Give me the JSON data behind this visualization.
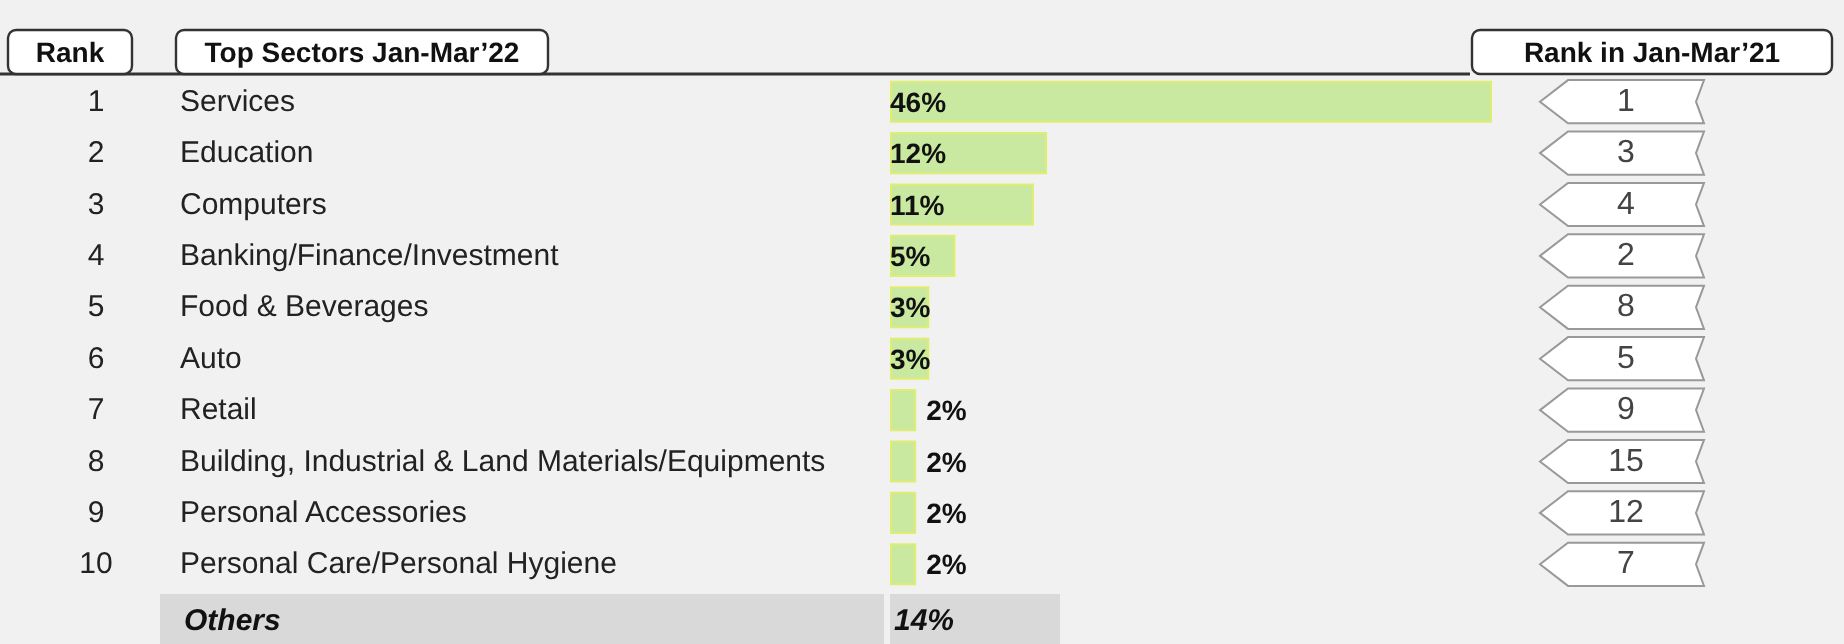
{
  "chart_data": {
    "type": "bar",
    "orientation": "horizontal",
    "categories": [
      "Services",
      "Education",
      "Computers",
      "Banking/Finance/Investment",
      "Food & Beverages",
      "Auto",
      "Retail",
      "Building, Industrial & Land Materials/Equipments",
      "Personal Accessories",
      "Personal Care/Personal Hygiene"
    ],
    "values": [
      46,
      12,
      11,
      5,
      3,
      3,
      2,
      2,
      2,
      2
    ],
    "value_labels": [
      "46%",
      "12%",
      "11%",
      "5%",
      "3%",
      "3%",
      "2%",
      "2%",
      "2%",
      "2%"
    ],
    "color": "#c9e8a0",
    "annotations": [
      "Rank",
      "Top Sectors Jan-Mar’22",
      "Rank in Jan-Mar’21",
      "1",
      "2",
      "3",
      "4",
      "5",
      "6",
      "7",
      "8",
      "9",
      "10",
      "1",
      "3",
      "4",
      "2",
      "8",
      "5",
      "9",
      "15",
      "12",
      "7",
      "Others",
      "14%"
    ]
  }
}
